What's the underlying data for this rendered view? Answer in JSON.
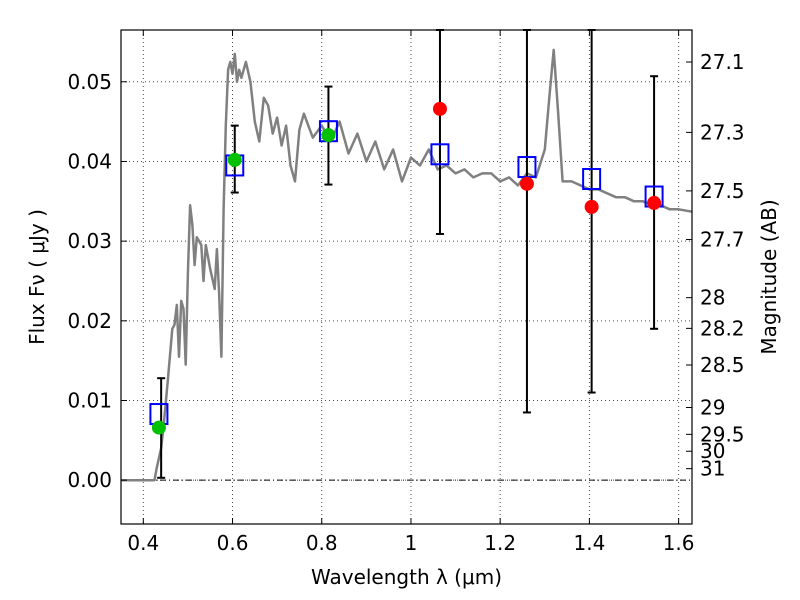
{
  "chart_data": {
    "type": "scatter",
    "title": "",
    "xlabel": "Wavelength  λ (μm)",
    "ylabel": "Flux  Fν  ( μJy )",
    "y2label": "Magnitude (AB)",
    "xlim": [
      0.35,
      1.63
    ],
    "ylim": [
      -0.0055,
      0.0565
    ],
    "grid": true,
    "x_ticks": [
      {
        "value": 0.4,
        "label": "0.4"
      },
      {
        "value": 0.6,
        "label": "0.6"
      },
      {
        "value": 0.8,
        "label": "0.8"
      },
      {
        "value": 1.0,
        "label": "1"
      },
      {
        "value": 1.2,
        "label": "1.2"
      },
      {
        "value": 1.4,
        "label": "1.4"
      },
      {
        "value": 1.6,
        "label": "1.6"
      }
    ],
    "y_ticks": [
      {
        "value": 0.0,
        "label": "0.00"
      },
      {
        "value": 0.01,
        "label": "0.01"
      },
      {
        "value": 0.02,
        "label": "0.02"
      },
      {
        "value": 0.03,
        "label": "0.03"
      },
      {
        "value": 0.04,
        "label": "0.04"
      },
      {
        "value": 0.05,
        "label": "0.05"
      }
    ],
    "y2_ticks": [
      {
        "value": 27.1,
        "label": "27.1"
      },
      {
        "value": 27.3,
        "label": "27.3"
      },
      {
        "value": 27.5,
        "label": "27.5"
      },
      {
        "value": 27.7,
        "label": "27.7"
      },
      {
        "value": 28,
        "label": "28"
      },
      {
        "value": 28.2,
        "label": "28.2"
      },
      {
        "value": 28.5,
        "label": "28.5"
      },
      {
        "value": 29,
        "label": "29"
      },
      {
        "value": 29.5,
        "label": "29.5"
      },
      {
        "value": 30,
        "label": "30"
      },
      {
        "value": 31,
        "label": "31"
      }
    ],
    "zero_line": 0.0,
    "colors": {
      "model": "#808080",
      "model_fluxes": "#0000ff",
      "detections": "#00c000",
      "measurements": "#ff0000",
      "errorbars": "#000000"
    },
    "model_spectrum": {
      "x": [
        0.35,
        0.425,
        0.43,
        0.44,
        0.445,
        0.455,
        0.465,
        0.47,
        0.475,
        0.48,
        0.485,
        0.49,
        0.495,
        0.5,
        0.505,
        0.51,
        0.515,
        0.52,
        0.525,
        0.53,
        0.535,
        0.54,
        0.55,
        0.56,
        0.565,
        0.57,
        0.575,
        0.58,
        0.585,
        0.59,
        0.595,
        0.6,
        0.605,
        0.61,
        0.615,
        0.62,
        0.63,
        0.64,
        0.65,
        0.66,
        0.67,
        0.68,
        0.69,
        0.7,
        0.71,
        0.72,
        0.73,
        0.74,
        0.75,
        0.76,
        0.78,
        0.8,
        0.82,
        0.84,
        0.86,
        0.88,
        0.9,
        0.92,
        0.94,
        0.96,
        0.98,
        1.0,
        1.02,
        1.04,
        1.06,
        1.08,
        1.1,
        1.12,
        1.14,
        1.16,
        1.18,
        1.2,
        1.22,
        1.24,
        1.26,
        1.28,
        1.3,
        1.31,
        1.32,
        1.33,
        1.34,
        1.36,
        1.38,
        1.4,
        1.42,
        1.44,
        1.46,
        1.48,
        1.5,
        1.52,
        1.54,
        1.56,
        1.58,
        1.6,
        1.63
      ],
      "y": [
        0.0,
        0.0,
        0.0015,
        0.004,
        0.0065,
        0.0125,
        0.019,
        0.0195,
        0.022,
        0.0155,
        0.0225,
        0.0215,
        0.0145,
        0.026,
        0.0345,
        0.032,
        0.027,
        0.0305,
        0.03,
        0.0295,
        0.025,
        0.0295,
        0.0265,
        0.024,
        0.029,
        0.0235,
        0.0155,
        0.034,
        0.0445,
        0.0515,
        0.0525,
        0.051,
        0.0535,
        0.05,
        0.0515,
        0.0505,
        0.0525,
        0.05,
        0.045,
        0.0425,
        0.048,
        0.047,
        0.0435,
        0.0455,
        0.042,
        0.0445,
        0.0395,
        0.0375,
        0.044,
        0.046,
        0.043,
        0.0445,
        0.0425,
        0.045,
        0.041,
        0.0435,
        0.04,
        0.0425,
        0.039,
        0.0415,
        0.0375,
        0.0405,
        0.0395,
        0.0415,
        0.039,
        0.0395,
        0.0385,
        0.039,
        0.038,
        0.0385,
        0.0385,
        0.0375,
        0.038,
        0.037,
        0.0385,
        0.038,
        0.0415,
        0.048,
        0.054,
        0.046,
        0.0375,
        0.0375,
        0.037,
        0.0365,
        0.0365,
        0.036,
        0.0355,
        0.0355,
        0.035,
        0.035,
        0.0345,
        0.0345,
        0.034,
        0.034,
        0.0337
      ]
    },
    "series": [
      {
        "marker": "square",
        "x": [
          0.435,
          0.605,
          0.815,
          1.065,
          1.26,
          1.405,
          1.545
        ],
        "y": [
          0.0083,
          0.0395,
          0.0438,
          0.0409,
          0.0393,
          0.0378,
          0.0356
        ]
      },
      {
        "marker": "circle",
        "x": [
          0.435,
          0.605,
          0.815
        ],
        "y": [
          0.0066,
          0.0402,
          0.0433
        ]
      },
      {
        "marker": "circle",
        "x": [
          1.065,
          1.26,
          1.405,
          1.545
        ],
        "y": [
          0.0466,
          0.0372,
          0.0343,
          0.0348
        ]
      }
    ],
    "errorbars": [
      {
        "x": 0.44,
        "y_low": 0.0003,
        "y_high": 0.0128
      },
      {
        "x": 0.605,
        "y_low": 0.0361,
        "y_high": 0.0445
      },
      {
        "x": 0.815,
        "y_low": 0.0371,
        "y_high": 0.0494
      },
      {
        "x": 1.065,
        "y_low": 0.0309,
        "y_high": 0.0565
      },
      {
        "x": 1.26,
        "y_low": 0.0085,
        "y_high": 0.0565
      },
      {
        "x": 1.405,
        "y_low": 0.011,
        "y_high": 0.0565
      },
      {
        "x": 1.545,
        "y_low": 0.019,
        "y_high": 0.0507
      }
    ]
  }
}
